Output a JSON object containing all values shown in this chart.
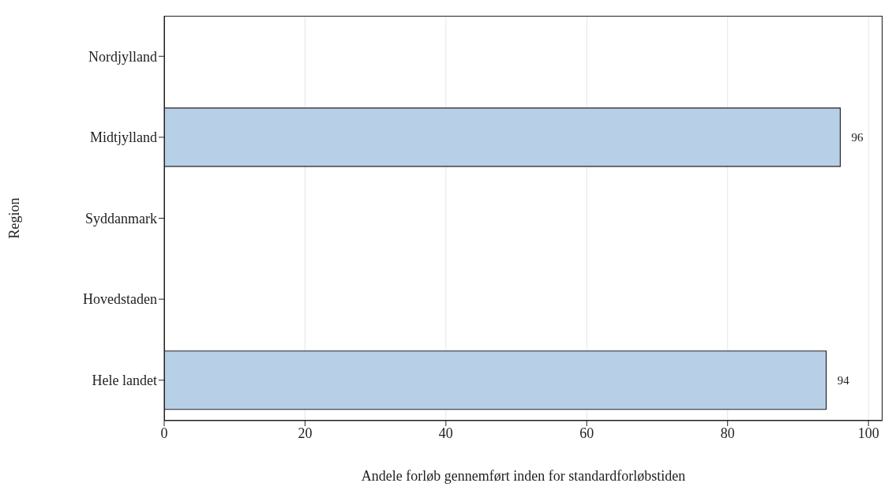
{
  "chart_data": {
    "type": "bar",
    "orientation": "horizontal",
    "categories": [
      "Nordjylland",
      "Midtjylland",
      "Syddanmark",
      "Hovedstaden",
      "Hele landet"
    ],
    "values": [
      null,
      96,
      null,
      null,
      94
    ],
    "color": "#b8cfe8",
    "data_labels": true,
    "xlim": [
      0,
      102
    ],
    "xticks": [
      0,
      20,
      40,
      60,
      80,
      100
    ],
    "grid": "x",
    "legend": false,
    "xlabel": "Andele forløb gennemført inden for standardforløbstiden",
    "ylabel": "Region"
  }
}
